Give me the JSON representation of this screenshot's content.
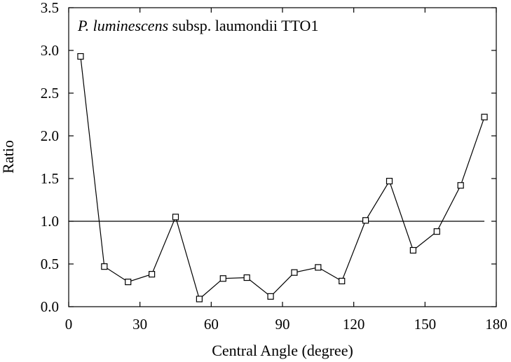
{
  "chart_data": {
    "type": "line",
    "title_italic": "P. luminescens",
    "title_rest": " subsp. laumondii TTO1",
    "xlabel": "Central Angle (degree)",
    "ylabel": "Ratio",
    "xlim": [
      0,
      180
    ],
    "ylim": [
      0,
      3.5
    ],
    "xticks": [
      "0",
      "30",
      "60",
      "90",
      "120",
      "150",
      "180"
    ],
    "yticks": [
      "0.0",
      "0.5",
      "1.0",
      "1.5",
      "2.0",
      "2.5",
      "3.0",
      "3.5"
    ],
    "xtick_values": [
      0,
      30,
      60,
      90,
      120,
      150,
      180
    ],
    "ytick_values": [
      0,
      0.5,
      1.0,
      1.5,
      2.0,
      2.5,
      3.0,
      3.5
    ],
    "grid": false,
    "series": [
      {
        "marker": "square-open",
        "x": [
          5,
          15,
          25,
          35,
          45,
          55,
          65,
          75,
          85,
          95,
          105,
          115,
          125,
          135,
          145,
          155,
          165,
          175
        ],
        "values": [
          2.93,
          0.47,
          0.29,
          0.38,
          1.05,
          0.09,
          0.33,
          0.34,
          0.12,
          0.4,
          0.46,
          0.3,
          1.01,
          1.47,
          0.66,
          0.88,
          1.42,
          2.22
        ]
      }
    ],
    "reference_line": {
      "y": 1.0,
      "x_range": [
        0,
        175
      ]
    }
  }
}
